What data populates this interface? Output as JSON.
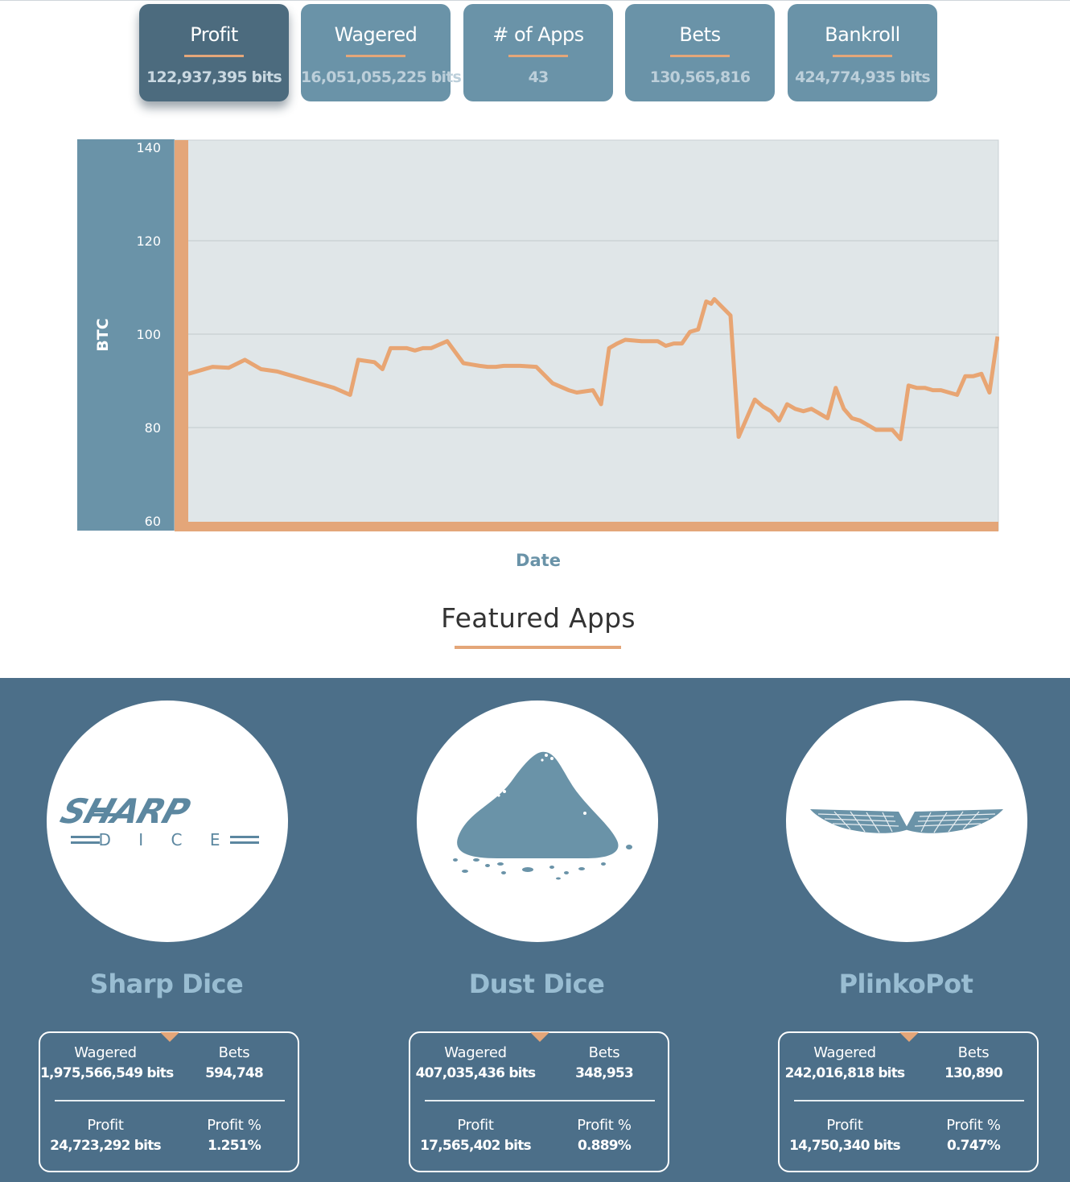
{
  "stats_tabs": [
    {
      "label": "Profit",
      "value": "122,937,395 bits",
      "active": true
    },
    {
      "label": "Wagered",
      "value": "16,051,055,225 bits",
      "active": false
    },
    {
      "label": "# of Apps",
      "value": "43",
      "active": false
    },
    {
      "label": "Bets",
      "value": "130,565,816",
      "active": false
    },
    {
      "label": "Bankroll",
      "value": "424,774,935 bits",
      "active": false
    }
  ],
  "chart_data": {
    "type": "line",
    "ylabel": "BTC",
    "xlabel": "Date",
    "ylim": [
      60,
      140
    ],
    "yticks": [
      60,
      80,
      100,
      120,
      140
    ],
    "grid": true,
    "series": [
      {
        "name": "Profit",
        "x": [
          0,
          3,
          5,
          7,
          9,
          11,
          12,
          13,
          15,
          16,
          18,
          20,
          21,
          23,
          24,
          25,
          27,
          28,
          29,
          30,
          32,
          34,
          35,
          36,
          37,
          38,
          39,
          40,
          41,
          43,
          45,
          47,
          48,
          50,
          51,
          52,
          53,
          54,
          56,
          57,
          58,
          59,
          60,
          61,
          62,
          63,
          64,
          64.6,
          65,
          67,
          68,
          70,
          71,
          72,
          73,
          74,
          75,
          76,
          77,
          79,
          80,
          81,
          82,
          83,
          84,
          85,
          86,
          87,
          88,
          89,
          90,
          91,
          92,
          93,
          94,
          95,
          96,
          97,
          98,
          99,
          100
        ],
        "values": [
          91.5,
          93,
          92.8,
          94.5,
          92.5,
          92,
          91.5,
          91,
          90,
          89.5,
          88.5,
          87,
          94.5,
          94,
          92.5,
          97,
          97,
          96.5,
          97,
          97,
          98.5,
          93.8,
          93.5,
          93.2,
          93,
          93,
          93.2,
          93.2,
          93.2,
          93,
          89.5,
          88,
          87.5,
          88,
          85,
          97,
          98,
          98.8,
          98.5,
          98.5,
          98.5,
          97.5,
          98,
          98,
          100.5,
          101,
          107,
          106.5,
          107.5,
          104,
          78,
          86,
          84.5,
          83.5,
          81.5,
          85,
          84,
          83.5,
          84,
          82,
          88.5,
          84,
          82,
          81.5,
          80.5,
          79.5,
          79.5,
          79.5,
          77.5,
          89,
          88.5,
          88.5,
          88,
          88,
          87.5,
          87,
          91,
          91,
          91.5,
          87.5,
          99.5
        ]
      }
    ]
  },
  "featured": {
    "title": "Featured Apps"
  },
  "apps": [
    {
      "name": "Sharp Dice",
      "logo_text": "SHARP",
      "logo_subtext": "D I C E",
      "wagered_label": "Wagered",
      "wagered": "1,975,566,549 bits",
      "bets_label": "Bets",
      "bets": "594,748",
      "profit_label": "Profit",
      "profit": "24,723,292 bits",
      "profit_pct_label": "Profit %",
      "profit_pct": "1.251%"
    },
    {
      "name": "Dust Dice",
      "wagered_label": "Wagered",
      "wagered": "407,035,436 bits",
      "bets_label": "Bets",
      "bets": "348,953",
      "profit_label": "Profit",
      "profit": "17,565,402 bits",
      "profit_pct_label": "Profit %",
      "profit_pct": "0.889%"
    },
    {
      "name": "PlinkoPot",
      "wagered_label": "Wagered",
      "wagered": "242,016,818 bits",
      "bets_label": "Bets",
      "bets": "130,890",
      "profit_label": "Profit",
      "profit": "14,750,340 bits",
      "profit_pct_label": "Profit %",
      "profit_pct": "0.747%"
    }
  ],
  "colors": {
    "accent": "#e4a679",
    "tab_bg": "#6a93a8",
    "tab_active_bg": "#4c6b7e",
    "band_bg": "#4c6f89",
    "plot_bg": "#e0e6e8",
    "axis_bg": "#6a93a8"
  }
}
